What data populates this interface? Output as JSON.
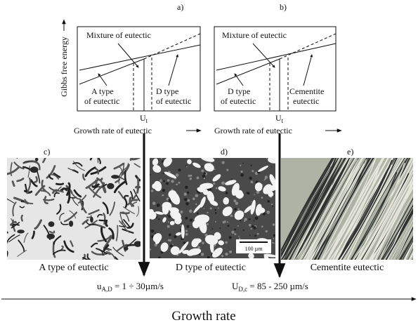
{
  "energy_axis_label": "Gibbs free energy",
  "panels": [
    {
      "label": "a)",
      "mixture": "Mixture of eutectic",
      "left": [
        "A type",
        "of eutectic"
      ],
      "right": [
        "D type",
        "of eutectic"
      ],
      "x_mark": {
        "symbol": "U",
        "subscript": "t"
      },
      "x_axis_label": "Growth rate of eutectic"
    },
    {
      "label": "b)",
      "mixture": "Mixture of eutectic",
      "left": [
        "D type",
        "of eutectic"
      ],
      "right": [
        "Cementite",
        "eutectic"
      ],
      "x_mark": {
        "symbol": "U",
        "subscript": "t"
      },
      "x_axis_label": "Growth rate of eutectic"
    }
  ],
  "micrographs": [
    {
      "label": "c)",
      "caption": "A type of eutectic"
    },
    {
      "label": "d)",
      "caption": "D type of eutectic",
      "scale_bar": "100 µm"
    },
    {
      "label": "e)",
      "caption": "Cementite eutectic"
    }
  ],
  "rates": [
    {
      "symbol": "u",
      "subscript": "A,D",
      "text": " = 1 ÷ 30µm/s"
    },
    {
      "symbol": "U",
      "subscript": "D,c",
      "text": " = 85 - 250 µm/s"
    }
  ],
  "axis_label": "Growth rate"
}
